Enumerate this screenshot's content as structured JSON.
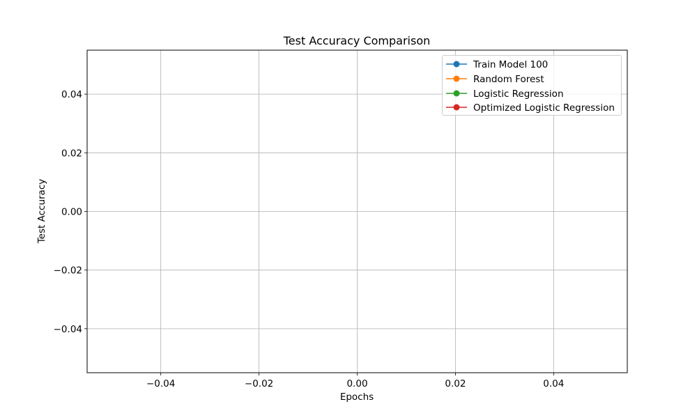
{
  "chart_data": {
    "type": "line",
    "title": "Test Accuracy Comparison",
    "xlabel": "Epochs",
    "ylabel": "Test Accuracy",
    "xlim": [
      -0.055,
      0.055
    ],
    "ylim": [
      -0.055,
      0.055
    ],
    "xticks": [
      -0.04,
      -0.02,
      0.0,
      0.02,
      0.04
    ],
    "xtick_labels": [
      "−0.04",
      "−0.02",
      "0.00",
      "0.02",
      "0.04"
    ],
    "yticks": [
      -0.04,
      -0.02,
      0.0,
      0.02,
      0.04
    ],
    "ytick_labels": [
      "−0.04",
      "−0.02",
      "0.00",
      "0.02",
      "0.04"
    ],
    "grid": true,
    "legend_position": "upper right",
    "series": [
      {
        "name": "Train Model 100",
        "color": "#1f77b4",
        "marker": "circle",
        "x": [],
        "y": []
      },
      {
        "name": "Random Forest",
        "color": "#ff7f0e",
        "marker": "circle",
        "x": [],
        "y": []
      },
      {
        "name": "Logistic Regression",
        "color": "#2ca02c",
        "marker": "circle",
        "x": [],
        "y": []
      },
      {
        "name": "Optimized Logistic Regression",
        "color": "#d62728",
        "marker": "circle",
        "x": [],
        "y": []
      }
    ]
  }
}
